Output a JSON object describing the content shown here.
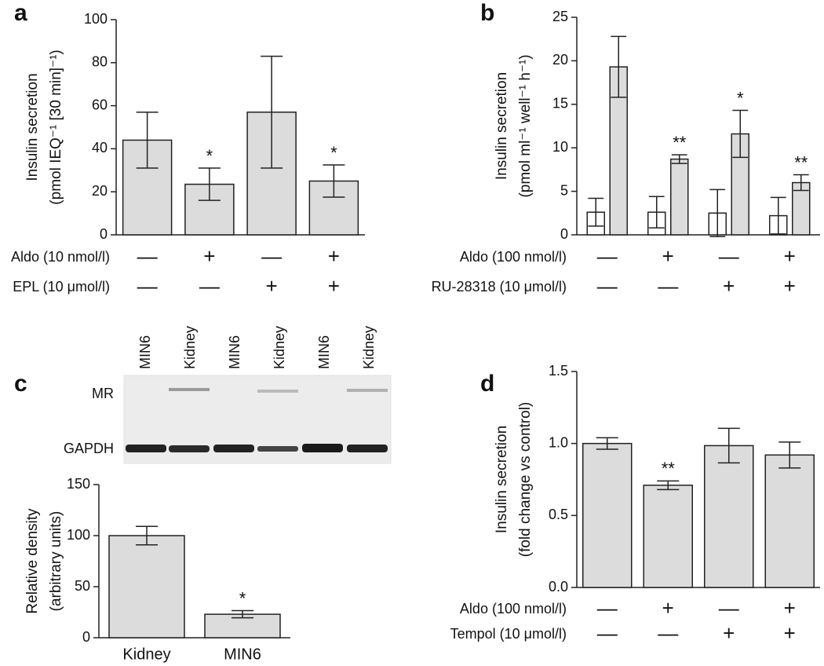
{
  "chart_data": [
    {
      "type": "bar",
      "panel_label": "a",
      "ylabel": [
        "Insulin secretion",
        "(pmol IEQ⁻¹ [30 min]⁻¹)"
      ],
      "values": [
        44,
        23.5,
        57,
        25
      ],
      "errors": [
        13,
        7.5,
        26,
        7.5
      ],
      "color": "#dcdcdc",
      "value_annotations": [
        null,
        "*",
        null,
        "*"
      ],
      "ylim": [
        0,
        100
      ],
      "yticks": [
        0,
        20,
        40,
        60,
        80,
        100
      ],
      "conditions": [
        {
          "label": "Aldo (10 nmol/l)",
          "marks": [
            "—",
            "+",
            "—",
            "+"
          ]
        },
        {
          "label": "EPL (10 μmol/l)",
          "marks": [
            "—",
            "—",
            "+",
            "+"
          ]
        }
      ]
    },
    {
      "type": "grouped_bar",
      "panel_label": "b",
      "ylabel": [
        "Insulin secretion",
        "(pmol ml⁻¹ well⁻¹ h⁻¹)"
      ],
      "series": [
        {
          "color": "#ffffff",
          "values": [
            2.6,
            2.6,
            2.5,
            2.2
          ],
          "errors": [
            1.6,
            1.8,
            2.7,
            2.1
          ]
        },
        {
          "color": "#dcdcdc",
          "values": [
            19.3,
            8.7,
            11.6,
            6.0
          ],
          "errors": [
            3.5,
            0.5,
            2.7,
            0.9
          ],
          "value_annotations": [
            null,
            "**",
            "*",
            "**"
          ]
        }
      ],
      "ylim": [
        0,
        25
      ],
      "yticks": [
        0,
        5,
        10,
        15,
        20,
        25
      ],
      "conditions": [
        {
          "label": "Aldo (100 nmol/l)",
          "marks": [
            "—",
            "+",
            "—",
            "+"
          ]
        },
        {
          "label": "RU-28318 (10 μmol/l)",
          "marks": [
            "—",
            "—",
            "+",
            "+"
          ]
        }
      ]
    },
    {
      "type": "bar",
      "panel_label": "c",
      "ylabel": [
        "Relative density",
        "(arbitrary units)"
      ],
      "categories": [
        "Kidney",
        "MIN6"
      ],
      "values": [
        100,
        23
      ],
      "errors": [
        9,
        3.5
      ],
      "color": "#dcdcdc",
      "value_annotations": [
        null,
        "*"
      ],
      "ylim": [
        0,
        150
      ],
      "yticks": [
        0,
        50,
        100,
        150
      ],
      "blot": {
        "lanes": [
          "MIN6",
          "Kidney",
          "MIN6",
          "Kidney",
          "MIN6",
          "Kidney"
        ],
        "rows": [
          "MR",
          "GAPDH"
        ]
      }
    },
    {
      "type": "bar",
      "panel_label": "d",
      "ylabel": [
        "Insulin secretion",
        "(fold change vs control)"
      ],
      "values": [
        1.0,
        0.71,
        0.985,
        0.92
      ],
      "errors": [
        0.04,
        0.03,
        0.12,
        0.09
      ],
      "color": "#dcdcdc",
      "value_annotations": [
        null,
        "**",
        null,
        null
      ],
      "ylim": [
        0,
        1.5
      ],
      "yticks": [
        {
          "value": 0,
          "label": "0.0"
        },
        0.5,
        {
          "value": 1,
          "label": "1.0"
        },
        1.5
      ],
      "conditions": [
        {
          "label": "Aldo (100 nmol/l)",
          "marks": [
            "—",
            "+",
            "—",
            "+"
          ]
        },
        {
          "label": "Tempol (10 μmol/l)",
          "marks": [
            "—",
            "—",
            "+",
            "+"
          ]
        }
      ]
    }
  ]
}
